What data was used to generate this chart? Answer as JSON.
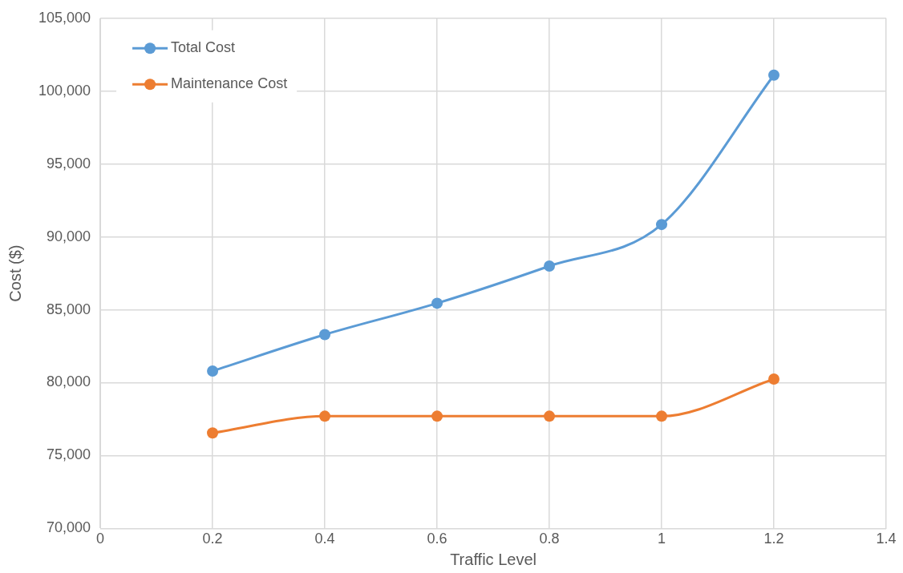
{
  "chart_data": {
    "type": "line",
    "xlabel": "Traffic Level",
    "ylabel": "Cost ($)",
    "x": [
      0.2,
      0.4,
      0.6,
      0.8,
      1.0,
      1.2
    ],
    "series": [
      {
        "name": "Total Cost",
        "color": "#5b9bd5",
        "values": [
          80800,
          83300,
          85450,
          88000,
          90850,
          101100
        ]
      },
      {
        "name": "Maintenance Cost",
        "color": "#ed7d31",
        "values": [
          76550,
          77700,
          77700,
          77700,
          77700,
          80250
        ]
      }
    ],
    "xlim": [
      0,
      1.4
    ],
    "xticks": [
      0,
      0.2,
      0.4,
      0.6,
      0.8,
      1,
      1.2,
      1.4
    ],
    "ylim": [
      70000,
      105000
    ],
    "yticks": [
      {
        "value": 70000,
        "label": "70,000"
      },
      {
        "value": 75000,
        "label": "75,000"
      },
      {
        "value": 80000,
        "label": "80,000"
      },
      {
        "value": 85000,
        "label": "85,000"
      },
      {
        "value": 90000,
        "label": "90,000"
      },
      {
        "value": 95000,
        "label": "95,000"
      },
      {
        "value": 100000,
        "label": "100,000"
      },
      {
        "value": 105000,
        "label": "105,000"
      }
    ],
    "grid": true,
    "legend": "top left",
    "marker": "circle",
    "line_style": "solid"
  }
}
